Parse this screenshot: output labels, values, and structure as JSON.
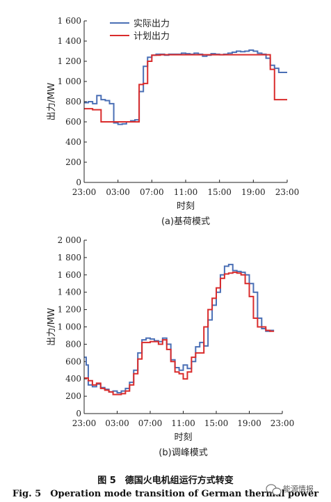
{
  "chart_data": [
    {
      "type": "line",
      "subtitle": "(a)基荷模式",
      "xlabel": "时刻",
      "ylabel": "出力/MW",
      "x_tick_labels": [
        "23:00",
        "03:00",
        "07:00",
        "11:00",
        "15:00",
        "19:00",
        "23:00"
      ],
      "y_ticks": [
        0,
        200,
        400,
        600,
        800,
        1000,
        1200,
        1400,
        1600
      ],
      "y_tick_labels": [
        "0",
        "200",
        "400",
        "600",
        "800",
        "1 000",
        "1 200",
        "1 400",
        "1 600"
      ],
      "xlim": [
        0,
        24
      ],
      "ylim": [
        0,
        1600
      ],
      "grid": false,
      "legend_position": "top-left",
      "series": [
        {
          "name": "实际出力",
          "color": "#4a6fb5",
          "x": [
            0,
            0.5,
            1,
            1.5,
            2,
            2.5,
            3,
            3.5,
            4,
            4.5,
            5,
            5.5,
            6,
            6.5,
            7,
            7.5,
            8,
            8.5,
            9,
            9.5,
            10,
            10.5,
            11,
            11.5,
            12,
            12.5,
            13,
            13.5,
            14,
            14.5,
            15,
            15.5,
            16,
            16.5,
            17,
            17.5,
            18,
            18.5,
            19,
            19.5,
            20,
            20.5,
            21,
            21.5,
            22,
            22.5,
            23,
            23.5
          ],
          "y": [
            790,
            800,
            780,
            860,
            820,
            810,
            780,
            590,
            575,
            580,
            600,
            610,
            620,
            900,
            1150,
            1240,
            1260,
            1270,
            1270,
            1260,
            1270,
            1270,
            1270,
            1280,
            1275,
            1270,
            1280,
            1270,
            1250,
            1260,
            1275,
            1270,
            1265,
            1270,
            1280,
            1290,
            1300,
            1295,
            1300,
            1310,
            1300,
            1280,
            1270,
            1230,
            1160,
            1130,
            1090,
            1090
          ]
        },
        {
          "name": "计划出力",
          "color": "#d92b2b",
          "x": [
            0,
            1,
            2,
            3,
            4,
            5,
            6,
            6.5,
            7,
            7.5,
            8,
            9,
            10,
            11,
            12,
            13,
            14,
            15,
            16,
            17,
            18,
            19,
            20,
            21,
            22,
            22.5,
            23,
            24
          ],
          "y": [
            730,
            720,
            600,
            600,
            600,
            600,
            600,
            970,
            980,
            1200,
            1260,
            1265,
            1265,
            1265,
            1265,
            1265,
            1265,
            1265,
            1265,
            1265,
            1265,
            1265,
            1265,
            1265,
            1120,
            820,
            820,
            820
          ]
        }
      ]
    },
    {
      "type": "line",
      "subtitle": "(b)调峰模式",
      "xlabel": "时刻",
      "ylabel": "出力/MW",
      "x_tick_labels": [
        "23:00",
        "03:00",
        "07:00",
        "11:00",
        "15:00",
        "19:00",
        "23:00"
      ],
      "y_ticks": [
        0,
        200,
        400,
        600,
        800,
        1000,
        1200,
        1400,
        1600,
        1800,
        2000
      ],
      "y_tick_labels": [
        "0",
        "200",
        "400",
        "600",
        "800",
        "1 000",
        "1 200",
        "1 400",
        "1 600",
        "1 800",
        "2 000"
      ],
      "xlim": [
        0,
        24
      ],
      "ylim": [
        0,
        2000
      ],
      "grid": false,
      "series": [
        {
          "name": "实际出力",
          "color": "#4a6fb5",
          "x": [
            0,
            0.25,
            0.5,
            1,
            1.5,
            2,
            2.5,
            3,
            3.5,
            4,
            4.5,
            5,
            5.5,
            6,
            6.5,
            7,
            7.5,
            8,
            8.5,
            9,
            9.5,
            10,
            10.5,
            11,
            11.5,
            12,
            12.5,
            13,
            13.5,
            14,
            14.5,
            15,
            15.5,
            16,
            16.5,
            17,
            17.5,
            18,
            18.5,
            19,
            19.5,
            20,
            20.5,
            21,
            21.5,
            22,
            22.5
          ],
          "y": [
            650,
            560,
            330,
            310,
            340,
            300,
            280,
            250,
            260,
            240,
            260,
            290,
            360,
            500,
            700,
            850,
            870,
            860,
            840,
            830,
            870,
            800,
            620,
            530,
            500,
            560,
            520,
            600,
            770,
            820,
            780,
            1080,
            1250,
            1400,
            1600,
            1700,
            1720,
            1650,
            1640,
            1630,
            1600,
            1500,
            1400,
            1100,
            980,
            950,
            960
          ]
        },
        {
          "name": "计划出力",
          "color": "#d92b2b",
          "x": [
            0,
            0.5,
            1,
            1.5,
            2,
            2.5,
            3,
            3.5,
            4,
            4.5,
            5,
            5.5,
            6,
            6.5,
            7,
            7.5,
            8,
            8.5,
            9,
            9.5,
            10,
            10.5,
            11,
            11.5,
            12,
            12.5,
            13,
            13.5,
            14,
            14.5,
            15,
            15.5,
            16,
            16.5,
            17,
            17.5,
            18,
            18.5,
            19,
            19.5,
            20,
            20.5,
            21,
            21.5,
            22,
            22.5
          ],
          "y": [
            410,
            380,
            330,
            350,
            290,
            270,
            250,
            220,
            220,
            230,
            260,
            330,
            460,
            630,
            820,
            820,
            830,
            830,
            800,
            850,
            740,
            600,
            480,
            460,
            400,
            480,
            650,
            700,
            700,
            1000,
            1200,
            1330,
            1450,
            1560,
            1610,
            1620,
            1630,
            1620,
            1600,
            1500,
            1350,
            1100,
            1000,
            1000,
            960,
            950
          ]
        }
      ]
    }
  ],
  "caption": {
    "cn": "图 5　德国火电机组运行方式转变",
    "en": "Fig. 5　Operation mode transition of German thermal power"
  },
  "watermark": {
    "text": "能源情报",
    "icon": "wechat-icon"
  }
}
